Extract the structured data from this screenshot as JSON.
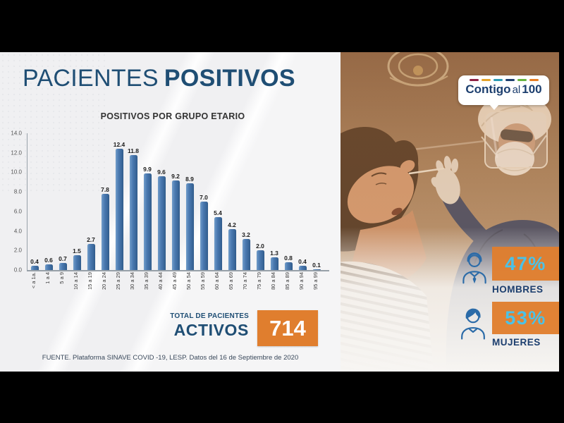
{
  "title": {
    "regular": "PACIENTES",
    "bold": "POSITIVOS"
  },
  "chart_data": {
    "type": "bar",
    "title": "POSITIVOS POR GRUPO ETARIO",
    "categories": [
      "< a 1a.",
      "1 a 4",
      "5 a 9",
      "10 a 14",
      "15 a 19",
      "20 a 24",
      "25 a 29",
      "30 a 34",
      "35 a 39",
      "40 a 44",
      "45 a 49",
      "50 a 54",
      "55 a 59",
      "60 a 64",
      "65 a 69",
      "70 a 74",
      "75 a 79",
      "80 a 84",
      "85 a 89",
      "90 a 94",
      "95 a 99"
    ],
    "values": [
      0.4,
      0.6,
      0.7,
      1.5,
      2.7,
      7.8,
      12.4,
      11.8,
      9.9,
      9.6,
      9.2,
      8.9,
      7.0,
      5.4,
      4.2,
      3.2,
      2.0,
      1.3,
      0.8,
      0.4,
      0.1
    ],
    "xlabel": "",
    "ylabel": "",
    "ylim": [
      0,
      14
    ],
    "ytick_step": 2,
    "grid": false,
    "legend": false,
    "value_labels": true,
    "bar_color": "#4577ae"
  },
  "total": {
    "label_line1": "TOTAL DE PACIENTES",
    "label_line2": "ACTIVOS",
    "value": "714"
  },
  "source": "FUENTE. Plataforma SINAVE COVID -19, LESP. Datos del 16 de Septiembre de 2020",
  "logo": {
    "text1": "Contigo",
    "text2": "al",
    "text3": "100",
    "dash_colors": [
      "#8e2043",
      "#e5a32a",
      "#2a9bb5",
      "#1c3e6e",
      "#67b43f",
      "#e87e23"
    ]
  },
  "stats": {
    "men": {
      "value": "47%",
      "label": "HOMBRES"
    },
    "women": {
      "value": "53%",
      "label": "MUJERES"
    }
  },
  "colors": {
    "accent_orange": "#e07e2e",
    "percent_cyan": "#4ac2e8",
    "navy": "#1c3e6e",
    "bar_blue": "#4577ae",
    "title_navy": "#1f4e74"
  }
}
